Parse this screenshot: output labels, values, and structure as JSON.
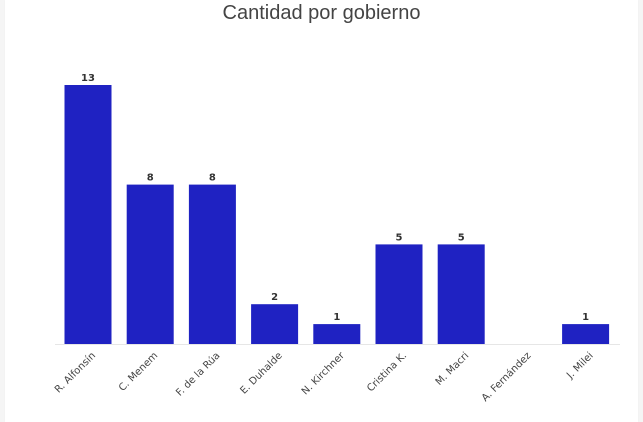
{
  "chart_data": {
    "type": "bar",
    "title": "Cantidad por gobierno",
    "xlabel": "",
    "ylabel": "",
    "categories": [
      "R. Alfonsín",
      "C. Menem",
      "F. de la Rúa",
      "E. Duhalde",
      "N. Kirchner",
      "Cristina K.",
      "M. Macri",
      "A. Fernández",
      "J. Milei"
    ],
    "values": [
      13,
      8,
      8,
      2,
      1,
      5,
      5,
      0,
      1
    ],
    "data_labels": [
      "13",
      "8",
      "8",
      "2",
      "1",
      "5",
      "5",
      "",
      "1"
    ],
    "ylim": [
      0,
      13
    ],
    "grid": false,
    "legend": "none",
    "bar_color": "#1f22c2"
  }
}
